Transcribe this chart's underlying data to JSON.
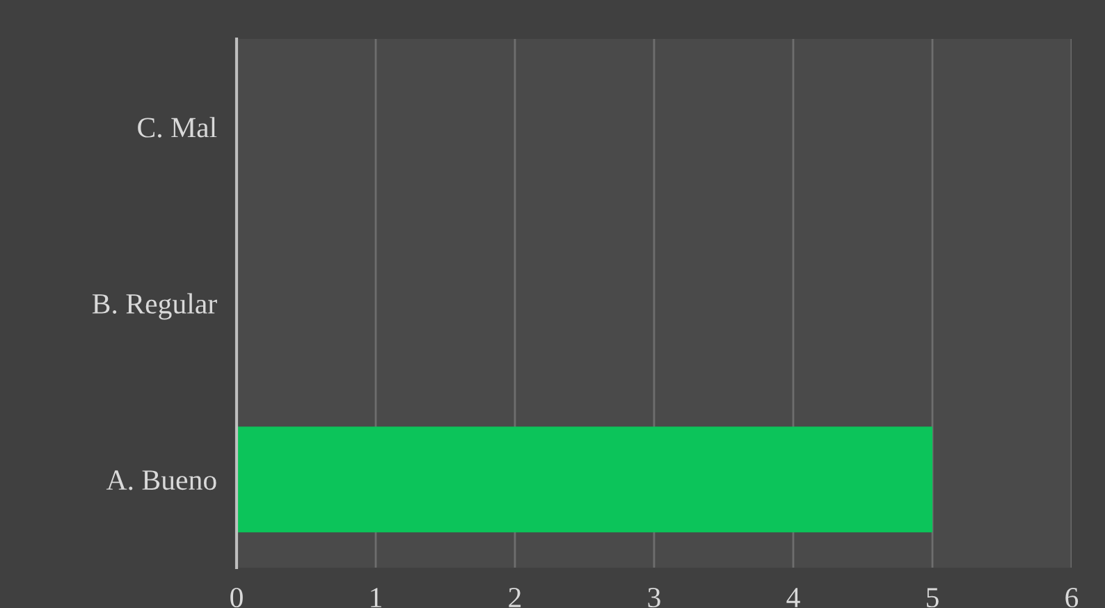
{
  "chart_data": {
    "type": "bar",
    "orientation": "horizontal",
    "categories": [
      "C. Mal",
      "B. Regular",
      "A. Bueno"
    ],
    "values": [
      0,
      0,
      5
    ],
    "color": "#0cc45a",
    "xlim": [
      0,
      6
    ],
    "xticks": [
      0,
      1,
      2,
      3,
      4,
      5,
      6
    ],
    "grid": "x",
    "legend": false
  }
}
